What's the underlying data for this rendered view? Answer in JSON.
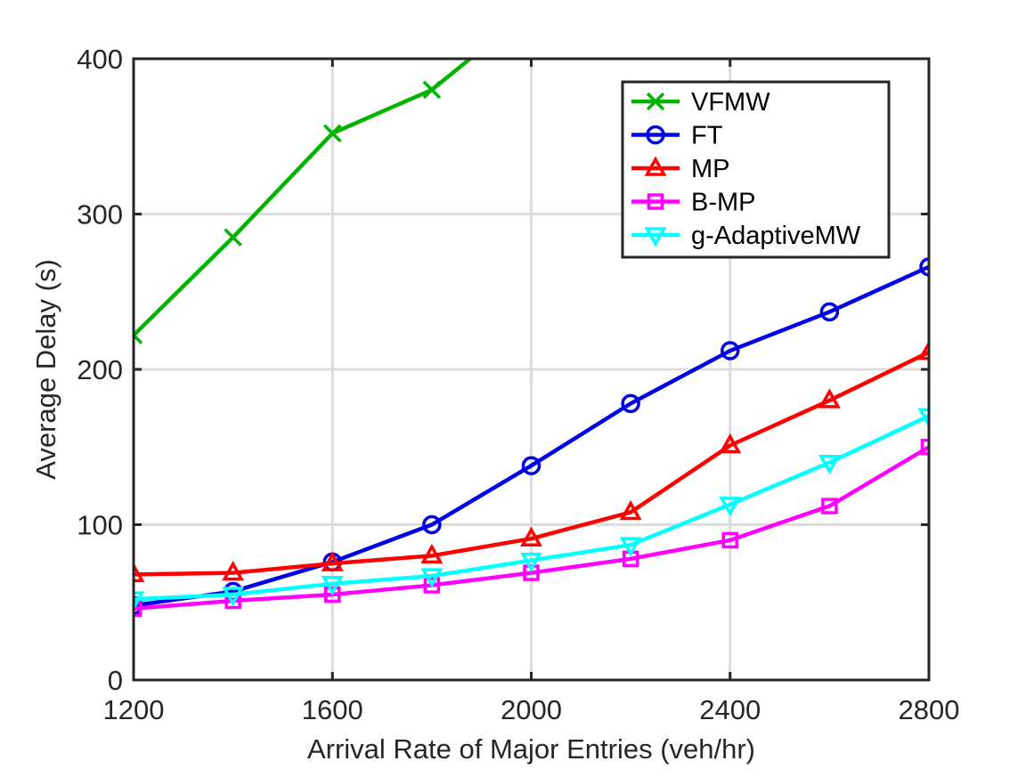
{
  "chart_data": {
    "type": "line",
    "title": "",
    "xlabel": "Arrival Rate of Major Entries (veh/hr)",
    "ylabel": "Average Delay (s)",
    "xlim": [
      1200,
      2800
    ],
    "ylim": [
      0,
      400
    ],
    "xticks": [
      1200,
      1600,
      2000,
      2400,
      2800
    ],
    "xtick_labels": [
      "1200",
      "1600",
      "2000",
      "2400",
      "2800"
    ],
    "yticks": [
      0,
      100,
      200,
      300,
      400
    ],
    "ytick_labels": [
      "0",
      "100",
      "200",
      "300",
      "400"
    ],
    "grid": true,
    "legend_position": "top-right",
    "x": [
      1200,
      1400,
      1600,
      1800,
      2000,
      2200,
      2400,
      2600,
      2800
    ],
    "series": [
      {
        "name": "VFMW",
        "color": "#00b400",
        "marker": "x",
        "values": [
          222,
          285,
          352,
          380,
          432,
          null,
          null,
          null,
          null
        ]
      },
      {
        "name": "FT",
        "color": "#0000e6",
        "marker": "circle",
        "values": [
          48,
          57,
          76,
          100,
          138,
          178,
          212,
          237,
          266
        ]
      },
      {
        "name": "MP",
        "color": "#ff0000",
        "marker": "triangle-up",
        "values": [
          68,
          69,
          75,
          80,
          91,
          108,
          151,
          180,
          211
        ]
      },
      {
        "name": "B-MP",
        "color": "#ff00ff",
        "marker": "square",
        "values": [
          46,
          51,
          55,
          61,
          69,
          78,
          90,
          112,
          150
        ]
      },
      {
        "name": "g-AdaptiveMW",
        "color": "#00ffff",
        "marker": "triangle-down",
        "values": [
          52,
          55,
          62,
          67,
          77,
          87,
          113,
          140,
          170
        ]
      }
    ]
  }
}
